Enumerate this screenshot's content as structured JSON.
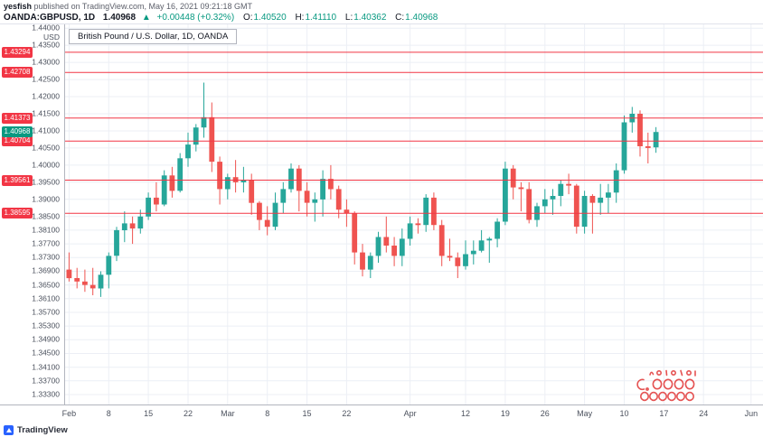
{
  "header": {
    "byline_author": "yesfish",
    "byline_rest": " published on TradingView.com, May 16, 2021 09:21:18 GMT",
    "symbol": "OANDA:GBPUSD, 1D",
    "last": "1.40968",
    "arrow": "▲",
    "change": "+0.00448 (+0.32%)",
    "open_label": "O:",
    "open": "1.40520",
    "high_label": "H:",
    "high": "1.41110",
    "low_label": "L:",
    "low": "1.40362",
    "close_label": "C:",
    "close": "1.40968"
  },
  "legend": "British Pound / U.S. Dollar, 1D, OANDA",
  "axis_currency": "USD",
  "footer": {
    "brand": "TradingView"
  },
  "colors": {
    "up": "#26a69a",
    "down": "#ef5350",
    "level": "#f23645",
    "grid": "#eceff5",
    "badge_red": "#f23645",
    "badge_green": "#089981",
    "change_green": "#089981",
    "accent_blue": "#2962ff",
    "text_dark": "#131722",
    "axis_line": "#b2b5be",
    "scribble_red": "#e23b3b"
  },
  "chart_data": {
    "type": "candlestick",
    "title": "British Pound / U.S. Dollar, 1D, OANDA",
    "ylim": [
      1.3301,
      1.4411
    ],
    "total_slots": 88,
    "grid": true,
    "y_ticks": [
      {
        "label": "1.44000",
        "value": 1.44
      },
      {
        "label": "1.43500",
        "value": 1.435
      },
      {
        "label": "1.43000",
        "value": 1.43
      },
      {
        "label": "1.42500",
        "value": 1.425
      },
      {
        "label": "1.42000",
        "value": 1.42
      },
      {
        "label": "1.41500",
        "value": 1.415
      },
      {
        "label": "1.41000",
        "value": 1.41
      },
      {
        "label": "1.40500",
        "value": 1.405
      },
      {
        "label": "1.40000",
        "value": 1.4
      },
      {
        "label": "1.39500",
        "value": 1.395
      },
      {
        "label": "1.39000",
        "value": 1.39
      },
      {
        "label": "1.38500",
        "value": 1.385
      },
      {
        "label": "1.38100",
        "value": 1.381
      },
      {
        "label": "1.37700",
        "value": 1.377
      },
      {
        "label": "1.37300",
        "value": 1.373
      },
      {
        "label": "1.36900",
        "value": 1.369
      },
      {
        "label": "1.36500",
        "value": 1.365
      },
      {
        "label": "1.36100",
        "value": 1.361
      },
      {
        "label": "1.35700",
        "value": 1.357
      },
      {
        "label": "1.35300",
        "value": 1.353
      },
      {
        "label": "1.34900",
        "value": 1.349
      },
      {
        "label": "1.34500",
        "value": 1.345
      },
      {
        "label": "1.34100",
        "value": 1.341
      },
      {
        "label": "1.33700",
        "value": 1.337
      },
      {
        "label": "1.33300",
        "value": 1.333
      }
    ],
    "x_ticks": [
      {
        "label": "Feb",
        "slot": 0
      },
      {
        "label": "8",
        "slot": 5
      },
      {
        "label": "15",
        "slot": 10
      },
      {
        "label": "22",
        "slot": 15
      },
      {
        "label": "Mar",
        "slot": 20
      },
      {
        "label": "8",
        "slot": 25
      },
      {
        "label": "15",
        "slot": 30
      },
      {
        "label": "22",
        "slot": 35
      },
      {
        "label": "Apr",
        "slot": 43
      },
      {
        "label": "12",
        "slot": 50
      },
      {
        "label": "19",
        "slot": 55
      },
      {
        "label": "26",
        "slot": 60
      },
      {
        "label": "May",
        "slot": 65
      },
      {
        "label": "10",
        "slot": 70
      },
      {
        "label": "17",
        "slot": 75
      },
      {
        "label": "24",
        "slot": 80
      },
      {
        "label": "Jun",
        "slot": 86
      }
    ],
    "levels": [
      {
        "label": "1.43294",
        "value": 1.43294
      },
      {
        "label": "1.42708",
        "value": 1.42708
      },
      {
        "label": "1.41373",
        "value": 1.41373
      },
      {
        "label": "1.40704",
        "value": 1.40704
      },
      {
        "label": "1.39561",
        "value": 1.39561
      },
      {
        "label": "1.38595",
        "value": 1.38595
      }
    ],
    "current_price": {
      "label": "1.40968",
      "value": 1.40968
    },
    "candles": [
      [
        1.3695,
        1.3745,
        1.366,
        1.367
      ],
      [
        1.367,
        1.37,
        1.364,
        1.366
      ],
      [
        1.366,
        1.3695,
        1.363,
        1.365
      ],
      [
        1.365,
        1.37,
        1.362,
        1.364
      ],
      [
        1.364,
        1.369,
        1.3615,
        1.368
      ],
      [
        1.368,
        1.3745,
        1.364,
        1.3735
      ],
      [
        1.3735,
        1.382,
        1.372,
        1.381
      ],
      [
        1.381,
        1.3865,
        1.3775,
        1.383
      ],
      [
        1.383,
        1.385,
        1.377,
        1.3815
      ],
      [
        1.3815,
        1.387,
        1.38,
        1.385
      ],
      [
        1.385,
        1.392,
        1.384,
        1.3905
      ],
      [
        1.3905,
        1.395,
        1.3865,
        1.3885
      ],
      [
        1.3885,
        1.3985,
        1.388,
        1.397
      ],
      [
        1.397,
        1.3995,
        1.3905,
        1.3925
      ],
      [
        1.3925,
        1.4035,
        1.392,
        1.402
      ],
      [
        1.402,
        1.4095,
        1.3995,
        1.406
      ],
      [
        1.406,
        1.412,
        1.404,
        1.411
      ],
      [
        1.411,
        1.4241,
        1.408,
        1.414
      ],
      [
        1.414,
        1.4183,
        1.398,
        1.401
      ],
      [
        1.401,
        1.4025,
        1.3885,
        1.393
      ],
      [
        1.393,
        1.3975,
        1.39,
        1.3965
      ],
      [
        1.3965,
        1.4015,
        1.392,
        1.395
      ],
      [
        1.395,
        1.3995,
        1.392,
        1.3955
      ],
      [
        1.3955,
        1.3975,
        1.3855,
        1.389
      ],
      [
        1.389,
        1.3895,
        1.381,
        1.384
      ],
      [
        1.384,
        1.388,
        1.3795,
        1.382
      ],
      [
        1.382,
        1.392,
        1.381,
        1.389
      ],
      [
        1.389,
        1.395,
        1.386,
        1.393
      ],
      [
        1.393,
        1.4005,
        1.392,
        1.399
      ],
      [
        1.399,
        1.4,
        1.3865,
        1.3925
      ],
      [
        1.3925,
        1.395,
        1.385,
        1.389
      ],
      [
        1.389,
        1.392,
        1.3835,
        1.39
      ],
      [
        1.39,
        1.3985,
        1.385,
        1.396
      ],
      [
        1.396,
        1.4,
        1.39,
        1.393
      ],
      [
        1.393,
        1.394,
        1.3845,
        1.387
      ],
      [
        1.387,
        1.39,
        1.382,
        1.386
      ],
      [
        1.386,
        1.3865,
        1.371,
        1.3745
      ],
      [
        1.3745,
        1.377,
        1.3675,
        1.3695
      ],
      [
        1.3695,
        1.3745,
        1.367,
        1.3735
      ],
      [
        1.3735,
        1.3805,
        1.3715,
        1.379
      ],
      [
        1.379,
        1.385,
        1.3745,
        1.3765
      ],
      [
        1.3765,
        1.379,
        1.3705,
        1.3735
      ],
      [
        1.3735,
        1.3815,
        1.3705,
        1.3785
      ],
      [
        1.3785,
        1.385,
        1.3765,
        1.383
      ],
      [
        1.383,
        1.3845,
        1.38,
        1.3825
      ],
      [
        1.3825,
        1.3915,
        1.3805,
        1.3905
      ],
      [
        1.3905,
        1.392,
        1.381,
        1.3825
      ],
      [
        1.3825,
        1.384,
        1.3705,
        1.3735
      ],
      [
        1.3735,
        1.3785,
        1.372,
        1.373
      ],
      [
        1.373,
        1.3745,
        1.367,
        1.3705
      ],
      [
        1.3705,
        1.378,
        1.3695,
        1.374
      ],
      [
        1.374,
        1.378,
        1.371,
        1.375
      ],
      [
        1.375,
        1.381,
        1.3745,
        1.378
      ],
      [
        1.378,
        1.379,
        1.3715,
        1.3785
      ],
      [
        1.3785,
        1.3845,
        1.376,
        1.3835
      ],
      [
        1.3835,
        1.401,
        1.3825,
        1.399
      ],
      [
        1.399,
        1.4,
        1.39,
        1.3935
      ],
      [
        1.3935,
        1.395,
        1.3865,
        1.393
      ],
      [
        1.393,
        1.395,
        1.383,
        1.384
      ],
      [
        1.384,
        1.389,
        1.382,
        1.388
      ],
      [
        1.388,
        1.393,
        1.386,
        1.39
      ],
      [
        1.39,
        1.393,
        1.3855,
        1.391
      ],
      [
        1.391,
        1.3955,
        1.388,
        1.3945
      ],
      [
        1.3945,
        1.3975,
        1.3915,
        1.394
      ],
      [
        1.394,
        1.3945,
        1.38,
        1.382
      ],
      [
        1.382,
        1.3925,
        1.38,
        1.391
      ],
      [
        1.391,
        1.3915,
        1.38,
        1.389
      ],
      [
        1.389,
        1.3945,
        1.3855,
        1.3905
      ],
      [
        1.3905,
        1.3945,
        1.386,
        1.392
      ],
      [
        1.392,
        1.4005,
        1.389,
        1.3985
      ],
      [
        1.3985,
        1.4145,
        1.3975,
        1.4125
      ],
      [
        1.4125,
        1.417,
        1.4095,
        1.415
      ],
      [
        1.415,
        1.416,
        1.4025,
        1.4055
      ],
      [
        1.4055,
        1.4095,
        1.4005,
        1.405
      ],
      [
        1.4052,
        1.4111,
        1.40362,
        1.40968
      ]
    ]
  }
}
